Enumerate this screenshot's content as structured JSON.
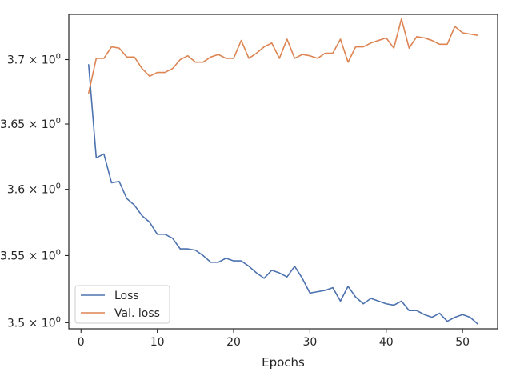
{
  "chart_data": {
    "type": "line",
    "title": "",
    "xlabel": "Epochs",
    "ylabel": "",
    "yscale": "log",
    "xlim": [
      -1.6,
      54.6
    ],
    "ylim": [
      3.4955,
      3.7355
    ],
    "xticks": [
      0,
      10,
      20,
      30,
      40,
      50
    ],
    "xtick_labels": [
      "0",
      "10",
      "20",
      "30",
      "40",
      "50"
    ],
    "yticks": [
      3.5,
      3.55,
      3.6,
      3.65,
      3.7
    ],
    "ytick_labels": [
      {
        "mantissa": "3.5",
        "base": "10",
        "exp": "0"
      },
      {
        "mantissa": "3.55",
        "base": "10",
        "exp": "0"
      },
      {
        "mantissa": "3.6",
        "base": "10",
        "exp": "0"
      },
      {
        "mantissa": "3.65",
        "base": "10",
        "exp": "0"
      },
      {
        "mantissa": "3.7",
        "base": "10",
        "exp": "0"
      }
    ],
    "grid": false,
    "legend_position": "lower-left",
    "x": [
      1,
      2,
      3,
      4,
      5,
      6,
      7,
      8,
      9,
      10,
      11,
      12,
      13,
      14,
      15,
      16,
      17,
      18,
      19,
      20,
      21,
      22,
      23,
      24,
      25,
      26,
      27,
      28,
      29,
      30,
      31,
      32,
      33,
      34,
      35,
      36,
      37,
      38,
      39,
      40,
      41,
      42,
      43,
      44,
      45,
      46,
      47,
      48,
      49,
      50,
      51,
      52
    ],
    "series": [
      {
        "name": "Loss",
        "color": "#4c72b0",
        "values": [
          3.696,
          3.624,
          3.627,
          3.605,
          3.606,
          3.593,
          3.588,
          3.58,
          3.575,
          3.566,
          3.566,
          3.563,
          3.555,
          3.555,
          3.554,
          3.55,
          3.545,
          3.545,
          3.548,
          3.546,
          3.546,
          3.542,
          3.537,
          3.533,
          3.539,
          3.537,
          3.534,
          3.542,
          3.533,
          3.522,
          3.523,
          3.524,
          3.526,
          3.516,
          3.527,
          3.519,
          3.514,
          3.518,
          3.516,
          3.514,
          3.513,
          3.516,
          3.509,
          3.509,
          3.506,
          3.504,
          3.507,
          3.501,
          3.504,
          3.506,
          3.504,
          3.499
        ]
      },
      {
        "name": "Val. loss",
        "color": "#dd8452",
        "values": [
          3.674,
          3.701,
          3.701,
          3.71,
          3.709,
          3.702,
          3.702,
          3.693,
          3.687,
          3.69,
          3.69,
          3.693,
          3.7,
          3.703,
          3.698,
          3.698,
          3.702,
          3.704,
          3.701,
          3.701,
          3.715,
          3.701,
          3.705,
          3.71,
          3.713,
          3.701,
          3.716,
          3.701,
          3.704,
          3.703,
          3.701,
          3.705,
          3.705,
          3.716,
          3.698,
          3.71,
          3.71,
          3.713,
          3.715,
          3.717,
          3.709,
          3.732,
          3.709,
          3.718,
          3.717,
          3.715,
          3.712,
          3.712,
          3.726,
          3.721,
          3.72,
          3.719
        ]
      }
    ]
  }
}
